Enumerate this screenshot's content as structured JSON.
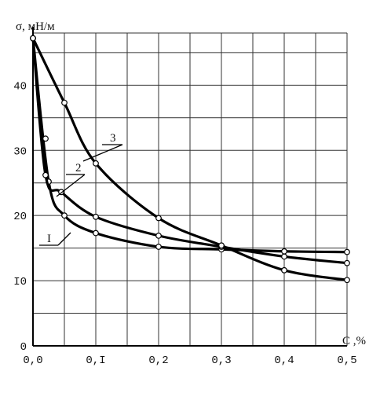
{
  "chart_data": {
    "type": "line",
    "ylabel": "σ, мН/м",
    "xlabel": "C ,%",
    "xlim": [
      0,
      0.5
    ],
    "ylim": [
      0,
      48
    ],
    "grid": true,
    "x_ticks": [
      {
        "value": 0,
        "label": "0,0"
      },
      {
        "value": 0.1,
        "label": "0,I"
      },
      {
        "value": 0.2,
        "label": "0,2"
      },
      {
        "value": 0.3,
        "label": "0,3"
      },
      {
        "value": 0.4,
        "label": "0,4"
      },
      {
        "value": 0.5,
        "label": "0,5"
      }
    ],
    "y_ticks": [
      {
        "value": 0,
        "label": "0"
      },
      {
        "value": 10,
        "label": "I0"
      },
      {
        "value": 20,
        "label": "20"
      },
      {
        "value": 30,
        "label": "30"
      },
      {
        "value": 40,
        "label": "40"
      }
    ],
    "series": [
      {
        "name": "I",
        "points": [
          [
            0,
            47.2
          ],
          [
            0.025,
            25.2
          ],
          [
            0.05,
            20.0
          ],
          [
            0.1,
            17.3
          ],
          [
            0.2,
            15.2
          ],
          [
            0.3,
            14.8
          ],
          [
            0.4,
            14.5
          ],
          [
            0.5,
            14.4
          ]
        ]
      },
      {
        "name": "2",
        "points": [
          [
            0,
            47.2
          ],
          [
            0.02,
            26.2
          ],
          [
            0.045,
            23.6
          ],
          [
            0.1,
            19.8
          ],
          [
            0.2,
            16.9
          ],
          [
            0.3,
            15.2
          ],
          [
            0.4,
            13.7
          ],
          [
            0.5,
            12.7
          ]
        ]
      },
      {
        "name": "3",
        "points": [
          [
            0,
            47.2
          ],
          [
            0.02,
            31.8
          ],
          [
            0.05,
            37.3
          ],
          [
            0.1,
            28.0
          ],
          [
            0.2,
            19.6
          ],
          [
            0.3,
            15.4
          ],
          [
            0.4,
            11.6
          ],
          [
            0.5,
            10.1
          ]
        ]
      }
    ]
  }
}
